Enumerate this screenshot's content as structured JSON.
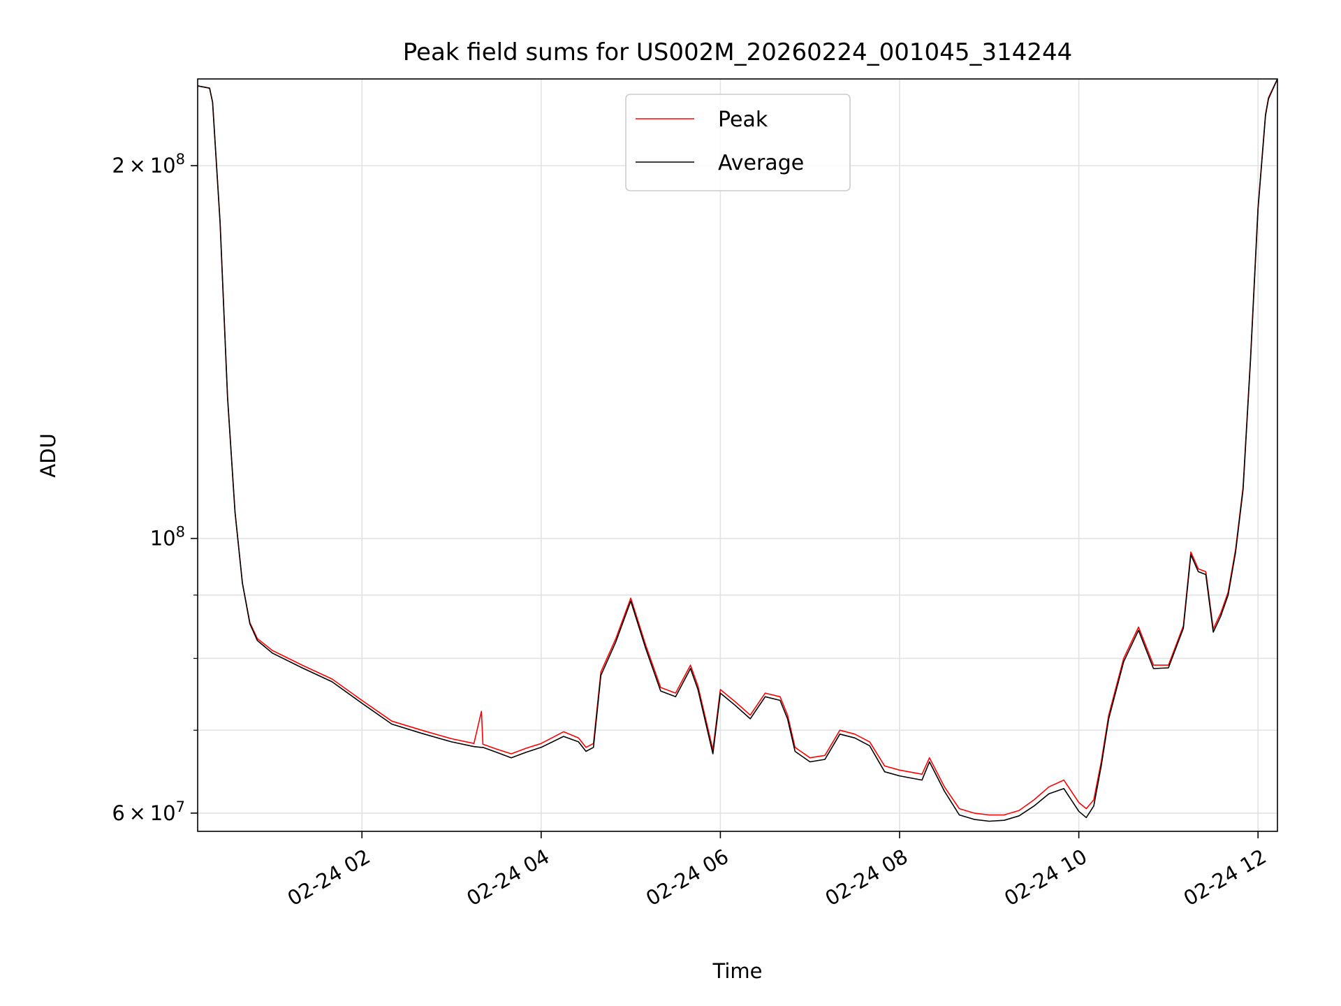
{
  "chart_data": {
    "type": "line",
    "title": "Peak field sums for US002M_20260224_001045_314244",
    "xlabel": "Time",
    "ylabel": "ADU",
    "x_axis": {
      "kind": "time",
      "range": [
        "02-24 00:10",
        "02-24 12:13"
      ],
      "ticks": [
        {
          "value": "02-24 02:00",
          "label": "02-24 02"
        },
        {
          "value": "02-24 04:00",
          "label": "02-24 04"
        },
        {
          "value": "02-24 06:00",
          "label": "02-24 06"
        },
        {
          "value": "02-24 08:00",
          "label": "02-24 08"
        },
        {
          "value": "02-24 10:00",
          "label": "02-24 10"
        },
        {
          "value": "02-24 12:00",
          "label": "02-24 12"
        }
      ]
    },
    "y_axis": {
      "scale": "log",
      "range": [
        58000000,
        235000000
      ],
      "major_ticks": [
        {
          "value": 100000000,
          "base": "10",
          "exp": "8",
          "coef": ""
        },
        {
          "value": 60000000,
          "base": "10",
          "exp": "7",
          "coef": "6"
        },
        {
          "value": 200000000,
          "base": "10",
          "exp": "8",
          "coef": "2"
        }
      ],
      "minor_ticks": [
        70000000,
        80000000,
        90000000
      ]
    },
    "grid": true,
    "legend": {
      "position": "upper center"
    },
    "series": [
      {
        "name": "Peak",
        "color": "#ff0000",
        "points": [
          [
            "02-24 00:10",
            232000000
          ],
          [
            "02-24 00:18",
            231000000
          ],
          [
            "02-24 00:20",
            225000000
          ],
          [
            "02-24 00:25",
            180000000
          ],
          [
            "02-24 00:30",
            130000000
          ],
          [
            "02-24 00:35",
            105000000
          ],
          [
            "02-24 00:40",
            92000000
          ],
          [
            "02-24 00:45",
            85500000
          ],
          [
            "02-24 00:50",
            83000000
          ],
          [
            "02-24 01:00",
            81200000
          ],
          [
            "02-24 01:20",
            79000000
          ],
          [
            "02-24 01:40",
            77000000
          ],
          [
            "02-24 02:00",
            74000000
          ],
          [
            "02-24 02:20",
            71200000
          ],
          [
            "02-24 02:40",
            70000000
          ],
          [
            "02-24 03:00",
            68900000
          ],
          [
            "02-24 03:15",
            68300000
          ],
          [
            "02-24 03:20",
            72500000
          ],
          [
            "02-24 03:21",
            68200000
          ],
          [
            "02-24 03:30",
            67600000
          ],
          [
            "02-24 03:40",
            67000000
          ],
          [
            "02-24 03:50",
            67700000
          ],
          [
            "02-24 04:00",
            68300000
          ],
          [
            "02-24 04:15",
            69800000
          ],
          [
            "02-24 04:25",
            69000000
          ],
          [
            "02-24 04:30",
            67800000
          ],
          [
            "02-24 04:35",
            68300000
          ],
          [
            "02-24 04:40",
            78000000
          ],
          [
            "02-24 04:50",
            83000000
          ],
          [
            "02-24 05:00",
            89500000
          ],
          [
            "02-24 05:10",
            82000000
          ],
          [
            "02-24 05:20",
            75800000
          ],
          [
            "02-24 05:30",
            75000000
          ],
          [
            "02-24 05:40",
            79000000
          ],
          [
            "02-24 05:45",
            76000000
          ],
          [
            "02-24 05:55",
            67500000
          ],
          [
            "02-24 06:00",
            75500000
          ],
          [
            "02-24 06:10",
            73800000
          ],
          [
            "02-24 06:20",
            72000000
          ],
          [
            "02-24 06:30",
            75000000
          ],
          [
            "02-24 06:40",
            74500000
          ],
          [
            "02-24 06:45",
            72000000
          ],
          [
            "02-24 06:50",
            67800000
          ],
          [
            "02-24 07:00",
            66500000
          ],
          [
            "02-24 07:10",
            66800000
          ],
          [
            "02-24 07:20",
            70000000
          ],
          [
            "02-24 07:30",
            69500000
          ],
          [
            "02-24 07:40",
            68500000
          ],
          [
            "02-24 07:50",
            65500000
          ],
          [
            "02-24 08:00",
            65000000
          ],
          [
            "02-24 08:15",
            64500000
          ],
          [
            "02-24 08:20",
            66500000
          ],
          [
            "02-24 08:30",
            63000000
          ],
          [
            "02-24 08:40",
            60500000
          ],
          [
            "02-24 08:50",
            60000000
          ],
          [
            "02-24 09:00",
            59800000
          ],
          [
            "02-24 09:10",
            59800000
          ],
          [
            "02-24 09:20",
            60300000
          ],
          [
            "02-24 09:30",
            61500000
          ],
          [
            "02-24 09:40",
            63000000
          ],
          [
            "02-24 09:50",
            63800000
          ],
          [
            "02-24 10:00",
            61200000
          ],
          [
            "02-24 10:05",
            60500000
          ],
          [
            "02-24 10:10",
            61500000
          ],
          [
            "02-24 10:15",
            66000000
          ],
          [
            "02-24 10:20",
            72000000
          ],
          [
            "02-24 10:30",
            80000000
          ],
          [
            "02-24 10:40",
            84800000
          ],
          [
            "02-24 10:50",
            79000000
          ],
          [
            "02-24 11:00",
            79000000
          ],
          [
            "02-24 11:10",
            85000000
          ],
          [
            "02-24 11:15",
            97500000
          ],
          [
            "02-24 11:20",
            94500000
          ],
          [
            "02-24 11:25",
            94000000
          ],
          [
            "02-24 11:30",
            84500000
          ],
          [
            "02-24 11:35",
            87000000
          ],
          [
            "02-24 11:40",
            90500000
          ],
          [
            "02-24 11:45",
            98000000
          ],
          [
            "02-24 11:50",
            110000000
          ],
          [
            "02-24 11:55",
            140000000
          ],
          [
            "02-24 12:00",
            185000000
          ],
          [
            "02-24 12:05",
            220000000
          ],
          [
            "02-24 12:07",
            227000000
          ],
          [
            "02-24 12:13",
            235000000
          ]
        ]
      },
      {
        "name": "Average",
        "color": "#000000",
        "points": [
          [
            "02-24 00:10",
            232000000
          ],
          [
            "02-24 00:18",
            231000000
          ],
          [
            "02-24 00:20",
            225000000
          ],
          [
            "02-24 00:25",
            180000000
          ],
          [
            "02-24 00:30",
            130000000
          ],
          [
            "02-24 00:35",
            105000000
          ],
          [
            "02-24 00:40",
            92000000
          ],
          [
            "02-24 00:45",
            85300000
          ],
          [
            "02-24 00:50",
            82700000
          ],
          [
            "02-24 01:00",
            80800000
          ],
          [
            "02-24 01:20",
            78600000
          ],
          [
            "02-24 01:40",
            76600000
          ],
          [
            "02-24 02:00",
            73600000
          ],
          [
            "02-24 02:20",
            70800000
          ],
          [
            "02-24 02:40",
            69600000
          ],
          [
            "02-24 03:00",
            68500000
          ],
          [
            "02-24 03:15",
            67900000
          ],
          [
            "02-24 03:20",
            67800000
          ],
          [
            "02-24 03:21",
            67800000
          ],
          [
            "02-24 03:30",
            67200000
          ],
          [
            "02-24 03:40",
            66500000
          ],
          [
            "02-24 03:50",
            67200000
          ],
          [
            "02-24 04:00",
            67800000
          ],
          [
            "02-24 04:15",
            69200000
          ],
          [
            "02-24 04:25",
            68500000
          ],
          [
            "02-24 04:30",
            67300000
          ],
          [
            "02-24 04:35",
            67800000
          ],
          [
            "02-24 04:40",
            77500000
          ],
          [
            "02-24 04:50",
            82500000
          ],
          [
            "02-24 05:00",
            89000000
          ],
          [
            "02-24 05:10",
            81500000
          ],
          [
            "02-24 05:20",
            75300000
          ],
          [
            "02-24 05:30",
            74500000
          ],
          [
            "02-24 05:40",
            78500000
          ],
          [
            "02-24 05:45",
            75500000
          ],
          [
            "02-24 05:55",
            67000000
          ],
          [
            "02-24 06:00",
            75000000
          ],
          [
            "02-24 06:10",
            73300000
          ],
          [
            "02-24 06:20",
            71500000
          ],
          [
            "02-24 06:30",
            74500000
          ],
          [
            "02-24 06:40",
            74000000
          ],
          [
            "02-24 06:45",
            71500000
          ],
          [
            "02-24 06:50",
            67300000
          ],
          [
            "02-24 07:00",
            66000000
          ],
          [
            "02-24 07:10",
            66300000
          ],
          [
            "02-24 07:20",
            69500000
          ],
          [
            "02-24 07:30",
            69000000
          ],
          [
            "02-24 07:40",
            68000000
          ],
          [
            "02-24 07:50",
            64800000
          ],
          [
            "02-24 08:00",
            64300000
          ],
          [
            "02-24 08:15",
            63800000
          ],
          [
            "02-24 08:20",
            66000000
          ],
          [
            "02-24 08:30",
            62500000
          ],
          [
            "02-24 08:40",
            59800000
          ],
          [
            "02-24 08:50",
            59300000
          ],
          [
            "02-24 09:00",
            59100000
          ],
          [
            "02-24 09:10",
            59200000
          ],
          [
            "02-24 09:20",
            59700000
          ],
          [
            "02-24 09:30",
            60800000
          ],
          [
            "02-24 09:40",
            62200000
          ],
          [
            "02-24 09:50",
            62800000
          ],
          [
            "02-24 10:00",
            60200000
          ],
          [
            "02-24 10:05",
            59500000
          ],
          [
            "02-24 10:10",
            60800000
          ],
          [
            "02-24 10:15",
            65500000
          ],
          [
            "02-24 10:20",
            71500000
          ],
          [
            "02-24 10:30",
            79500000
          ],
          [
            "02-24 10:40",
            84300000
          ],
          [
            "02-24 10:50",
            78500000
          ],
          [
            "02-24 11:00",
            78600000
          ],
          [
            "02-24 11:10",
            84600000
          ],
          [
            "02-24 11:15",
            97000000
          ],
          [
            "02-24 11:20",
            94000000
          ],
          [
            "02-24 11:25",
            93500000
          ],
          [
            "02-24 11:30",
            84000000
          ],
          [
            "02-24 11:35",
            86500000
          ],
          [
            "02-24 11:40",
            90000000
          ],
          [
            "02-24 11:45",
            97500000
          ],
          [
            "02-24 11:50",
            109500000
          ],
          [
            "02-24 11:55",
            139500000
          ],
          [
            "02-24 12:00",
            184500000
          ],
          [
            "02-24 12:05",
            219500000
          ],
          [
            "02-24 12:07",
            226500000
          ],
          [
            "02-24 12:13",
            235000000
          ]
        ]
      }
    ]
  }
}
